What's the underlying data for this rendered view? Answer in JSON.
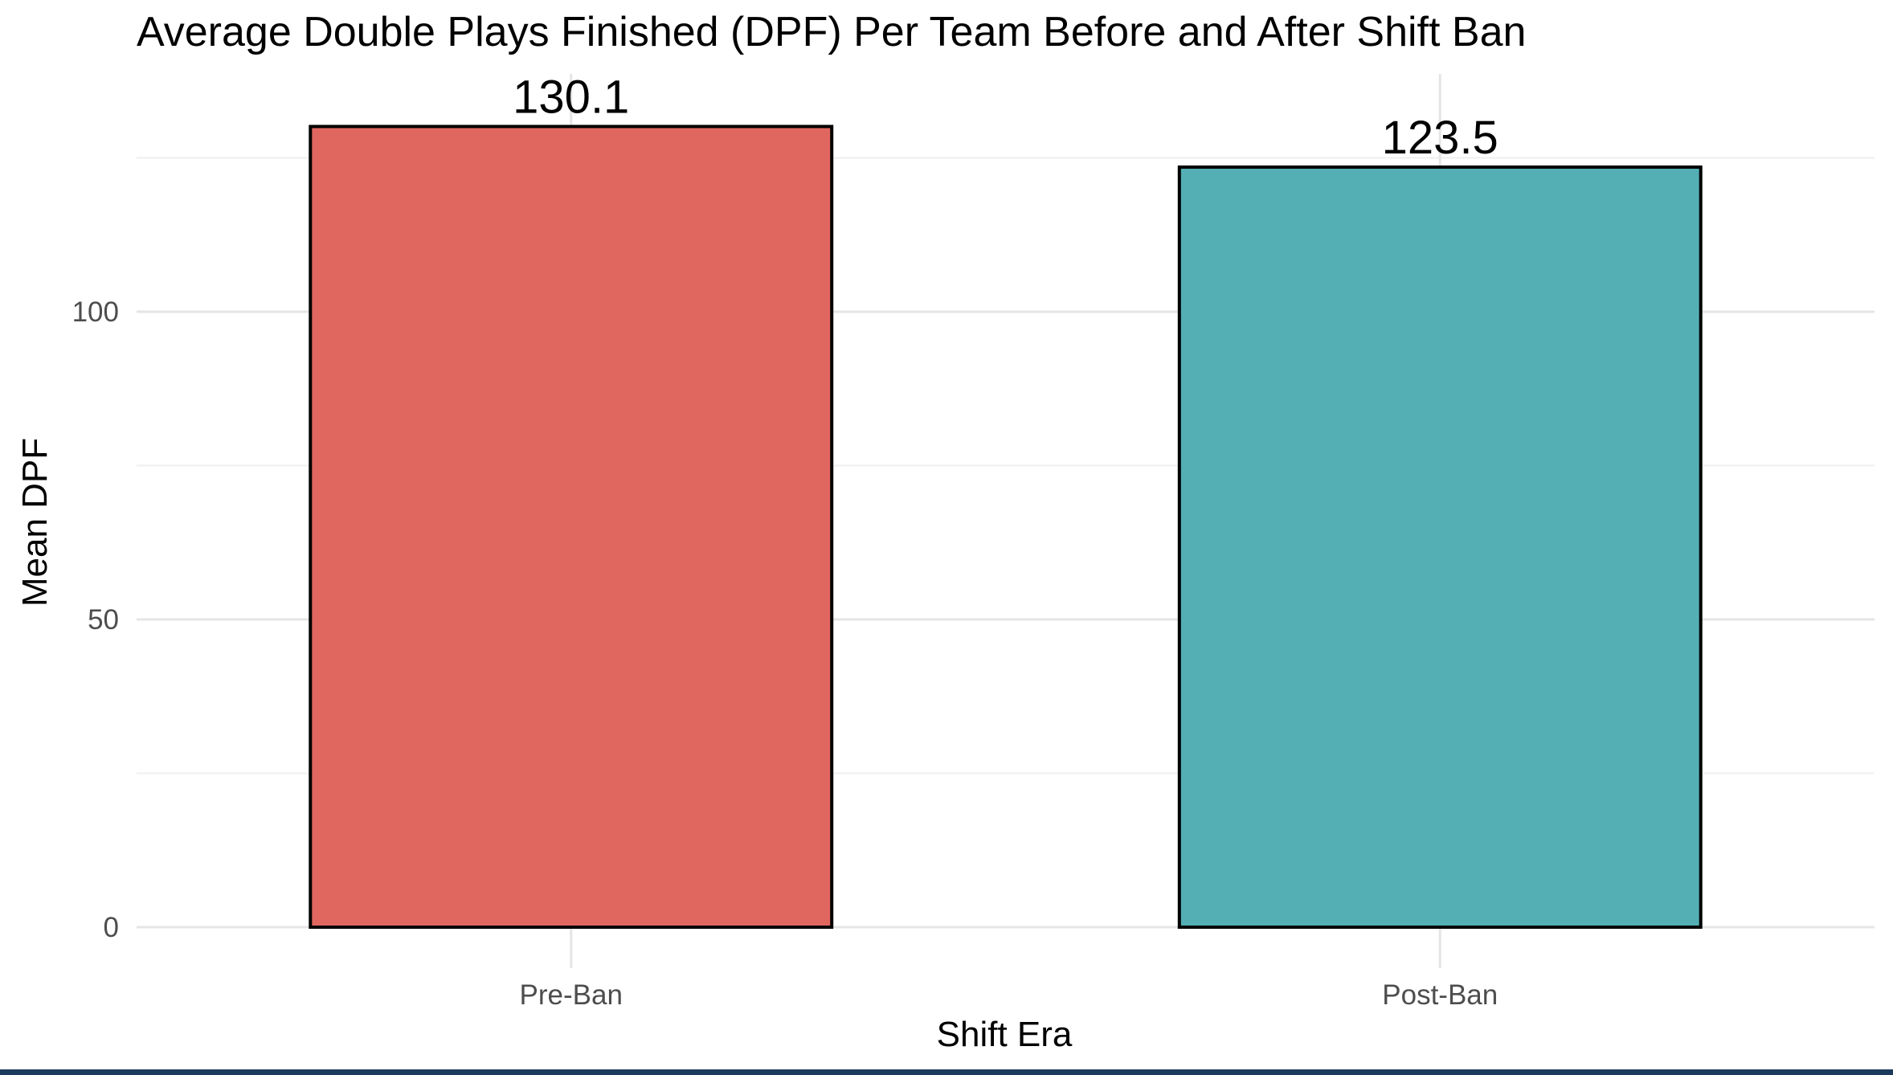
{
  "chart_data": {
    "type": "bar",
    "title": "Average Double Plays Finished (DPF) Per Team Before and After Shift Ban",
    "xlabel": "Shift Era",
    "ylabel": "Mean DPF",
    "categories": [
      "Pre-Ban",
      "Post-Ban"
    ],
    "values": [
      130.1,
      123.5
    ],
    "data_labels": [
      "130.1",
      "123.5"
    ],
    "colors": [
      "#e06760",
      "#54afb5"
    ],
    "ylim": [
      0,
      140
    ],
    "y_ticks": [
      0,
      50,
      100
    ],
    "y_tick_labels": [
      "0",
      "50",
      "100"
    ],
    "grid": true,
    "legend": "none"
  }
}
